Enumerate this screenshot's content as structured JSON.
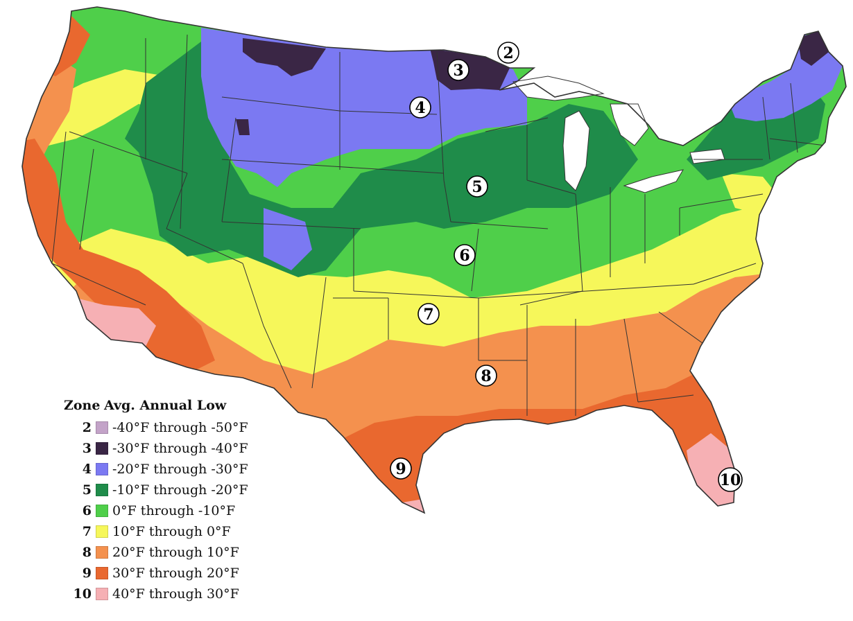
{
  "map": {
    "zone_colors": {
      "2": "#c3a3c8",
      "3": "#3a2645",
      "4": "#7b79f2",
      "5": "#1f8c4a",
      "6": "#4fcf4a",
      "7": "#f6f75a",
      "8": "#f4914e",
      "9": "#e9682f",
      "10": "#f6b0b4"
    },
    "border_color": "#333333",
    "callouts": [
      {
        "label": "2"
      },
      {
        "label": "3"
      },
      {
        "label": "4"
      },
      {
        "label": "5"
      },
      {
        "label": "6"
      },
      {
        "label": "7"
      },
      {
        "label": "8"
      },
      {
        "label": "9"
      },
      {
        "label": "10"
      }
    ]
  },
  "legend": {
    "zone_header": "Zone",
    "low_header": "Avg. Annual Low",
    "rows": [
      {
        "zone": "2",
        "range": "-40°F through -50°F",
        "color": "#c3a3c8"
      },
      {
        "zone": "3",
        "range": "-30°F through -40°F",
        "color": "#3a2645"
      },
      {
        "zone": "4",
        "range": "-20°F through -30°F",
        "color": "#7b79f2"
      },
      {
        "zone": "5",
        "range": "-10°F through -20°F",
        "color": "#1f8c4a"
      },
      {
        "zone": "6",
        "range": "0°F through -10°F",
        "color": "#4fcf4a"
      },
      {
        "zone": "7",
        "range": "10°F through 0°F",
        "color": "#f6f75a"
      },
      {
        "zone": "8",
        "range": "20°F through 10°F",
        "color": "#f4914e"
      },
      {
        "zone": "9",
        "range": "30°F through 20°F",
        "color": "#e9682f"
      },
      {
        "zone": "10",
        "range": "40°F through 30°F",
        "color": "#f6b0b4"
      }
    ]
  }
}
